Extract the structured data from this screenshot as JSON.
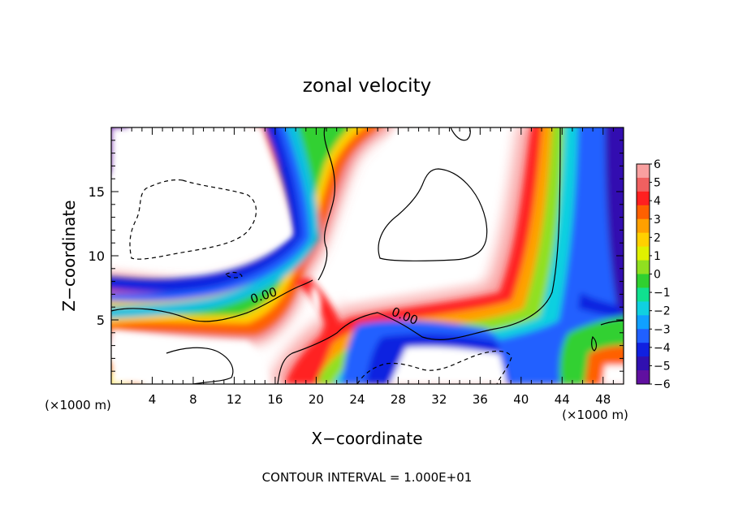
{
  "chart_data": {
    "type": "heatmap",
    "title": "zonal velocity",
    "xlabel": "X−coordinate",
    "ylabel": "Z−coordinate",
    "x_unit_left": "(×1000 m)",
    "x_unit_right": "(×1000 m)",
    "footer": "CONTOUR INTERVAL = 1.000E+01",
    "xlim": [
      0,
      50
    ],
    "ylim": [
      0,
      20
    ],
    "xticks": [
      4,
      8,
      12,
      16,
      20,
      24,
      28,
      32,
      36,
      40,
      44,
      48
    ],
    "yticks": [
      5,
      10,
      15
    ],
    "colorbar": {
      "range": [
        -6,
        6
      ],
      "labels": [
        "6",
        "5",
        "4",
        "3",
        "2",
        "1",
        "0",
        "−1",
        "−2",
        "−3",
        "−4",
        "−5",
        "−6"
      ],
      "colors": [
        "#f9a0a0",
        "#f06060",
        "#ff2020",
        "#ff6000",
        "#ffa000",
        "#ffd000",
        "#e0f000",
        "#90e020",
        "#30d030",
        "#10e090",
        "#10d0e0",
        "#10a0ff",
        "#2060ff",
        "#1020e0",
        "#3010b0",
        "#6010a0"
      ]
    },
    "contour_labels": [
      {
        "text": "0.00",
        "x": 15,
        "y": 6.6
      },
      {
        "text": "0.00",
        "x": 28.5,
        "y": 5.0
      }
    ]
  }
}
